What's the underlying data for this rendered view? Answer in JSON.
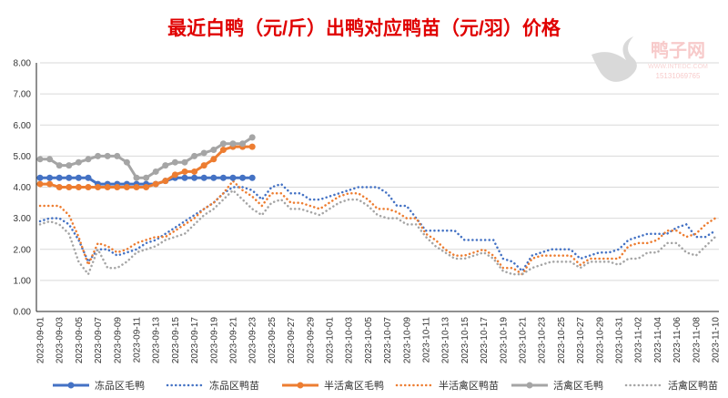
{
  "chart_data": {
    "type": "line",
    "title": "最近白鸭（元/斤）出鸭对应鸭苗（元/羽）价格",
    "xlabel": "",
    "ylabel": "",
    "ylim": [
      0,
      8
    ],
    "yticks": [
      "0.00",
      "1.00",
      "2.00",
      "3.00",
      "4.00",
      "5.00",
      "6.00",
      "7.00",
      "8.00"
    ],
    "grid": true,
    "legend_position": "bottom",
    "x_start": "2023-09-01",
    "x_end": "2023-11-10",
    "x_label_every_days": 2,
    "series": [
      {
        "name": "冻品区毛鸭",
        "color": "#4472C4",
        "style": "solid-marker",
        "values": [
          4.3,
          4.3,
          4.3,
          4.3,
          4.3,
          4.3,
          4.1,
          4.1,
          4.1,
          4.1,
          4.1,
          4.1,
          4.1,
          4.2,
          4.3,
          4.3,
          4.3,
          4.3,
          4.3,
          4.3,
          4.3,
          4.3,
          4.3
        ]
      },
      {
        "name": "冻品区鸭苗",
        "color": "#4472C4",
        "style": "dotted",
        "values": [
          2.9,
          3.0,
          3.0,
          2.8,
          2.3,
          1.6,
          2.0,
          2.0,
          1.8,
          1.9,
          2.0,
          2.2,
          2.3,
          2.5,
          2.7,
          2.9,
          3.1,
          3.3,
          3.5,
          3.8,
          4.0,
          4.0,
          3.9,
          3.6,
          4.0,
          4.1,
          3.8,
          3.8,
          3.6,
          3.6,
          3.7,
          3.8,
          3.9,
          4.0,
          4.0,
          4.0,
          3.8,
          3.4,
          3.4,
          3.0,
          2.6,
          2.6,
          2.6,
          2.6,
          2.3,
          2.3,
          2.3,
          2.3,
          1.7,
          1.6,
          1.3,
          1.8,
          1.9,
          2.0,
          2.0,
          2.0,
          1.7,
          1.8,
          1.9,
          1.9,
          2.0,
          2.3,
          2.4,
          2.5,
          2.5,
          2.5,
          2.7,
          2.8,
          2.4,
          2.4,
          2.6
        ]
      },
      {
        "name": "半活禽区毛鸭",
        "color": "#ED7D31",
        "style": "solid-marker",
        "values": [
          4.1,
          4.1,
          4.0,
          4.0,
          4.0,
          4.0,
          4.0,
          4.0,
          4.0,
          4.0,
          4.0,
          4.0,
          4.1,
          4.2,
          4.4,
          4.5,
          4.5,
          4.7,
          4.9,
          5.2,
          5.3,
          5.3,
          5.3
        ]
      },
      {
        "name": "半活禽区鸭苗",
        "color": "#ED7D31",
        "style": "dotted",
        "values": [
          3.4,
          3.4,
          3.4,
          3.1,
          2.4,
          1.5,
          2.2,
          2.1,
          1.9,
          2.0,
          2.2,
          2.3,
          2.4,
          2.4,
          2.6,
          2.8,
          3.0,
          3.3,
          3.5,
          3.8,
          4.2,
          3.9,
          3.7,
          3.4,
          3.8,
          3.8,
          3.5,
          3.5,
          3.4,
          3.3,
          3.5,
          3.7,
          3.8,
          3.8,
          3.6,
          3.3,
          3.3,
          3.2,
          3.0,
          3.0,
          2.5,
          2.3,
          2.0,
          1.8,
          1.8,
          1.9,
          2.0,
          1.8,
          1.4,
          1.4,
          1.2,
          1.7,
          1.8,
          1.8,
          1.8,
          1.8,
          1.5,
          1.7,
          1.7,
          1.7,
          1.7,
          2.1,
          2.2,
          2.2,
          2.3,
          2.6,
          2.6,
          2.4,
          2.5,
          2.8,
          3.0
        ]
      },
      {
        "name": "活禽区毛鸭",
        "color": "#A5A5A5",
        "style": "solid-marker",
        "values": [
          4.9,
          4.9,
          4.7,
          4.7,
          4.8,
          4.9,
          5.0,
          5.0,
          5.0,
          4.8,
          4.3,
          4.3,
          4.5,
          4.7,
          4.8,
          4.8,
          5.0,
          5.1,
          5.2,
          5.4,
          5.4,
          5.4,
          5.6
        ]
      },
      {
        "name": "活禽区鸭苗",
        "color": "#A5A5A5",
        "style": "dotted",
        "values": [
          2.8,
          2.9,
          2.8,
          2.5,
          1.6,
          1.2,
          2.0,
          1.4,
          1.4,
          1.6,
          1.9,
          2.0,
          2.1,
          2.3,
          2.4,
          2.5,
          2.8,
          3.1,
          3.3,
          3.6,
          3.9,
          3.6,
          3.3,
          3.1,
          3.5,
          3.6,
          3.3,
          3.3,
          3.2,
          3.1,
          3.3,
          3.5,
          3.6,
          3.6,
          3.4,
          3.1,
          3.0,
          3.0,
          2.8,
          2.8,
          2.4,
          2.1,
          1.9,
          1.7,
          1.7,
          1.8,
          1.9,
          1.7,
          1.3,
          1.2,
          1.2,
          1.4,
          1.5,
          1.6,
          1.6,
          1.6,
          1.4,
          1.6,
          1.6,
          1.6,
          1.5,
          1.7,
          1.7,
          1.9,
          1.9,
          2.2,
          2.2,
          1.9,
          1.8,
          2.1,
          2.4
        ]
      }
    ]
  },
  "watermark": {
    "name": "鸭子网",
    "url": "WWW.INTEDC.COM",
    "phone": "15131069765"
  },
  "title_color": "#E00000"
}
